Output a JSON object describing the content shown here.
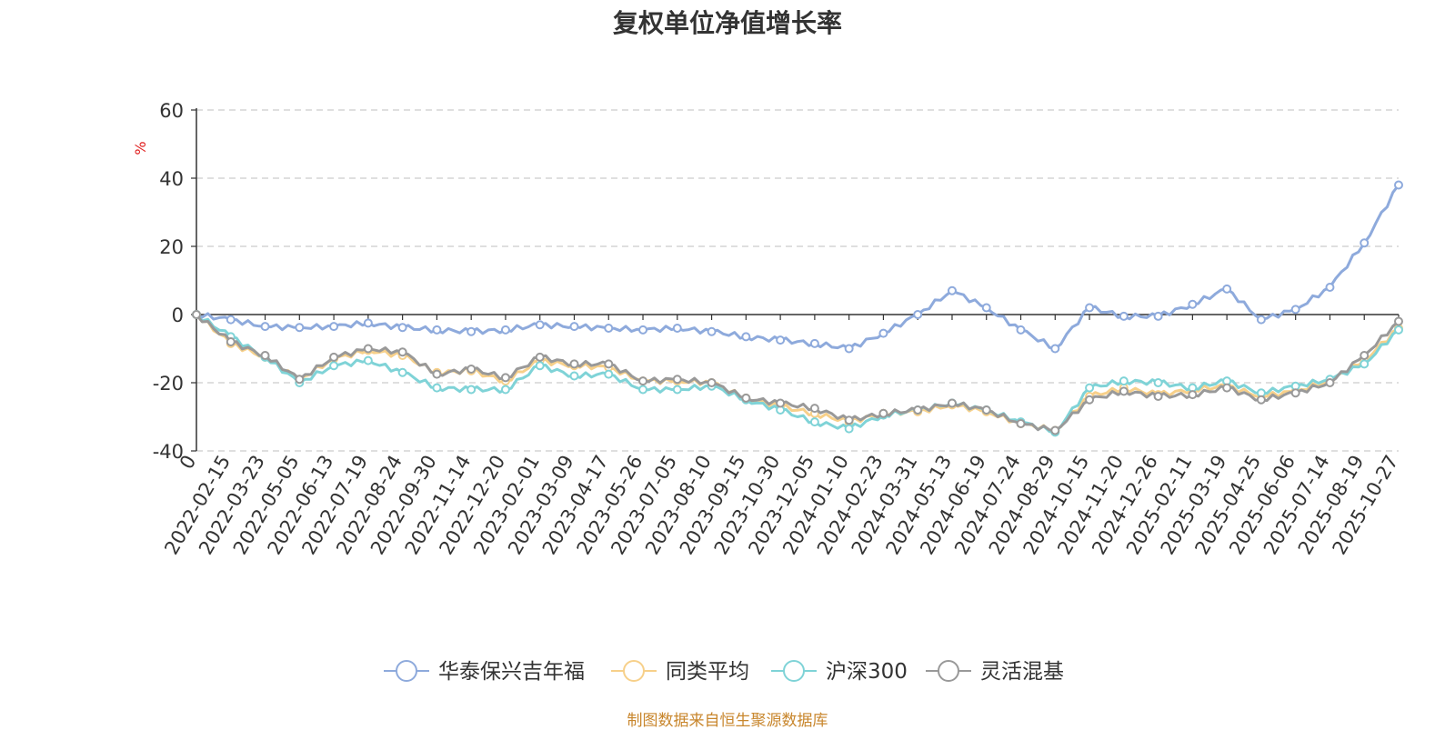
{
  "chart_data": {
    "type": "line",
    "title": "复权单位净值增长率",
    "ylabel": "%",
    "ylim": [
      -40,
      60
    ],
    "yticks": [
      "60",
      "40",
      "20",
      "0",
      "-20",
      "-40"
    ],
    "yticks_values": [
      60,
      40,
      20,
      0,
      -20,
      -40
    ],
    "grid": true,
    "legend_position": "bottom",
    "x_tick_labels": [
      "0",
      "2022-02-15",
      "2022-03-23",
      "2022-05-05",
      "2022-06-13",
      "2022-07-19",
      "2022-08-24",
      "2022-09-30",
      "2022-11-14",
      "2022-12-20",
      "2023-02-01",
      "2023-03-09",
      "2023-04-17",
      "2023-05-26",
      "2023-07-05",
      "2023-08-10",
      "2023-09-15",
      "2023-10-30",
      "2023-12-05",
      "2024-01-10",
      "2024-02-23",
      "2024-03-31",
      "2024-05-13",
      "2024-06-19",
      "2024-07-24",
      "2024-08-29",
      "2024-10-15",
      "2024-11-20",
      "2024-12-26",
      "2025-02-11",
      "2025-03-19",
      "2025-04-25",
      "2025-06-06",
      "2025-07-14",
      "2025-08-19",
      "2025-10-27"
    ],
    "x": [
      0,
      1,
      2,
      3,
      4,
      5,
      6,
      7,
      8,
      9,
      10,
      11,
      12,
      13,
      14,
      15,
      16,
      17,
      18,
      19,
      20,
      21,
      22,
      23,
      24,
      25,
      26,
      27,
      28,
      29,
      30,
      31,
      32,
      33,
      34,
      35
    ],
    "series": [
      {
        "name": "华泰保兴吉年福",
        "color": "#8eaadc",
        "values": [
          0,
          -1.5,
          -3.5,
          -3.8,
          -3.5,
          -2.5,
          -3.8,
          -4.5,
          -5,
          -4.5,
          -3,
          -3.5,
          -4,
          -4.5,
          -4,
          -5,
          -6.5,
          -7.5,
          -8.5,
          -10,
          -5.5,
          0,
          7,
          2,
          -4.5,
          -10,
          2,
          -0.5,
          -0.5,
          3,
          7.5,
          -1.5,
          1.5,
          8,
          21,
          38
        ]
      },
      {
        "name": "同类平均",
        "color": "#f7d08a",
        "values": [
          0,
          -8.5,
          -12.5,
          -19,
          -13,
          -10.5,
          -12,
          -17,
          -16.5,
          -19.5,
          -13.5,
          -15,
          -15.5,
          -19.5,
          -19.5,
          -20,
          -24.5,
          -27,
          -29,
          -31.5,
          -29,
          -28.5,
          -26.5,
          -28.5,
          -32,
          -34,
          -24,
          -21.5,
          -23.5,
          -22,
          -21,
          -24,
          -22.5,
          -19.5,
          -13.5,
          -4
        ]
      },
      {
        "name": "沪深300",
        "color": "#7fd3d7",
        "values": [
          0,
          -6.5,
          -12.5,
          -20,
          -15,
          -13.5,
          -17,
          -21.5,
          -22,
          -22,
          -15,
          -18,
          -17.5,
          -22,
          -22,
          -21,
          -25,
          -28,
          -31.5,
          -33.5,
          -29.5,
          -28,
          -26,
          -28,
          -31.5,
          -34.5,
          -21.5,
          -19.5,
          -20,
          -21.5,
          -19.5,
          -23,
          -21,
          -19,
          -14.5,
          -4.5
        ]
      },
      {
        "name": "灵活混基",
        "color": "#999999",
        "values": [
          0,
          -8,
          -12,
          -19,
          -12.5,
          -10,
          -11,
          -17.5,
          -16,
          -18.5,
          -12.5,
          -14.5,
          -14.5,
          -19.5,
          -19,
          -20,
          -24.5,
          -26,
          -27.5,
          -31,
          -29,
          -28,
          -26,
          -28,
          -32,
          -34,
          -25,
          -22.5,
          -24,
          -23.5,
          -21.5,
          -25,
          -23,
          -20,
          -12,
          -2
        ]
      }
    ]
  },
  "source_note": "制图数据来自恒生聚源数据库"
}
